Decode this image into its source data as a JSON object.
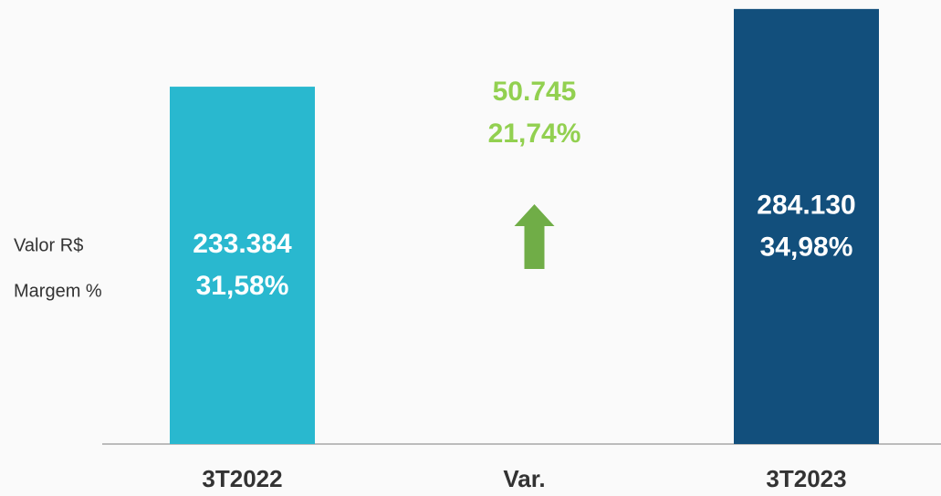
{
  "chart_data": {
    "type": "bar",
    "categories": [
      "3T2022",
      "Var.",
      "3T2023"
    ],
    "series": [
      {
        "name": "Valor R$",
        "values": [
          233384,
          50745,
          284130
        ],
        "value_labels": [
          "233.384",
          "50.745",
          "284.130"
        ]
      },
      {
        "name": "Margem %",
        "values": [
          31.58,
          21.74,
          34.98
        ],
        "value_labels": [
          "31,58%",
          "21,74%",
          "34,98%"
        ]
      }
    ],
    "colors": [
      "#29b8cf",
      null,
      "#124f7c"
    ],
    "arrow_color": "#70ad47",
    "delta_label_color": "#92d050",
    "ylim": [
      0,
      290000
    ]
  }
}
